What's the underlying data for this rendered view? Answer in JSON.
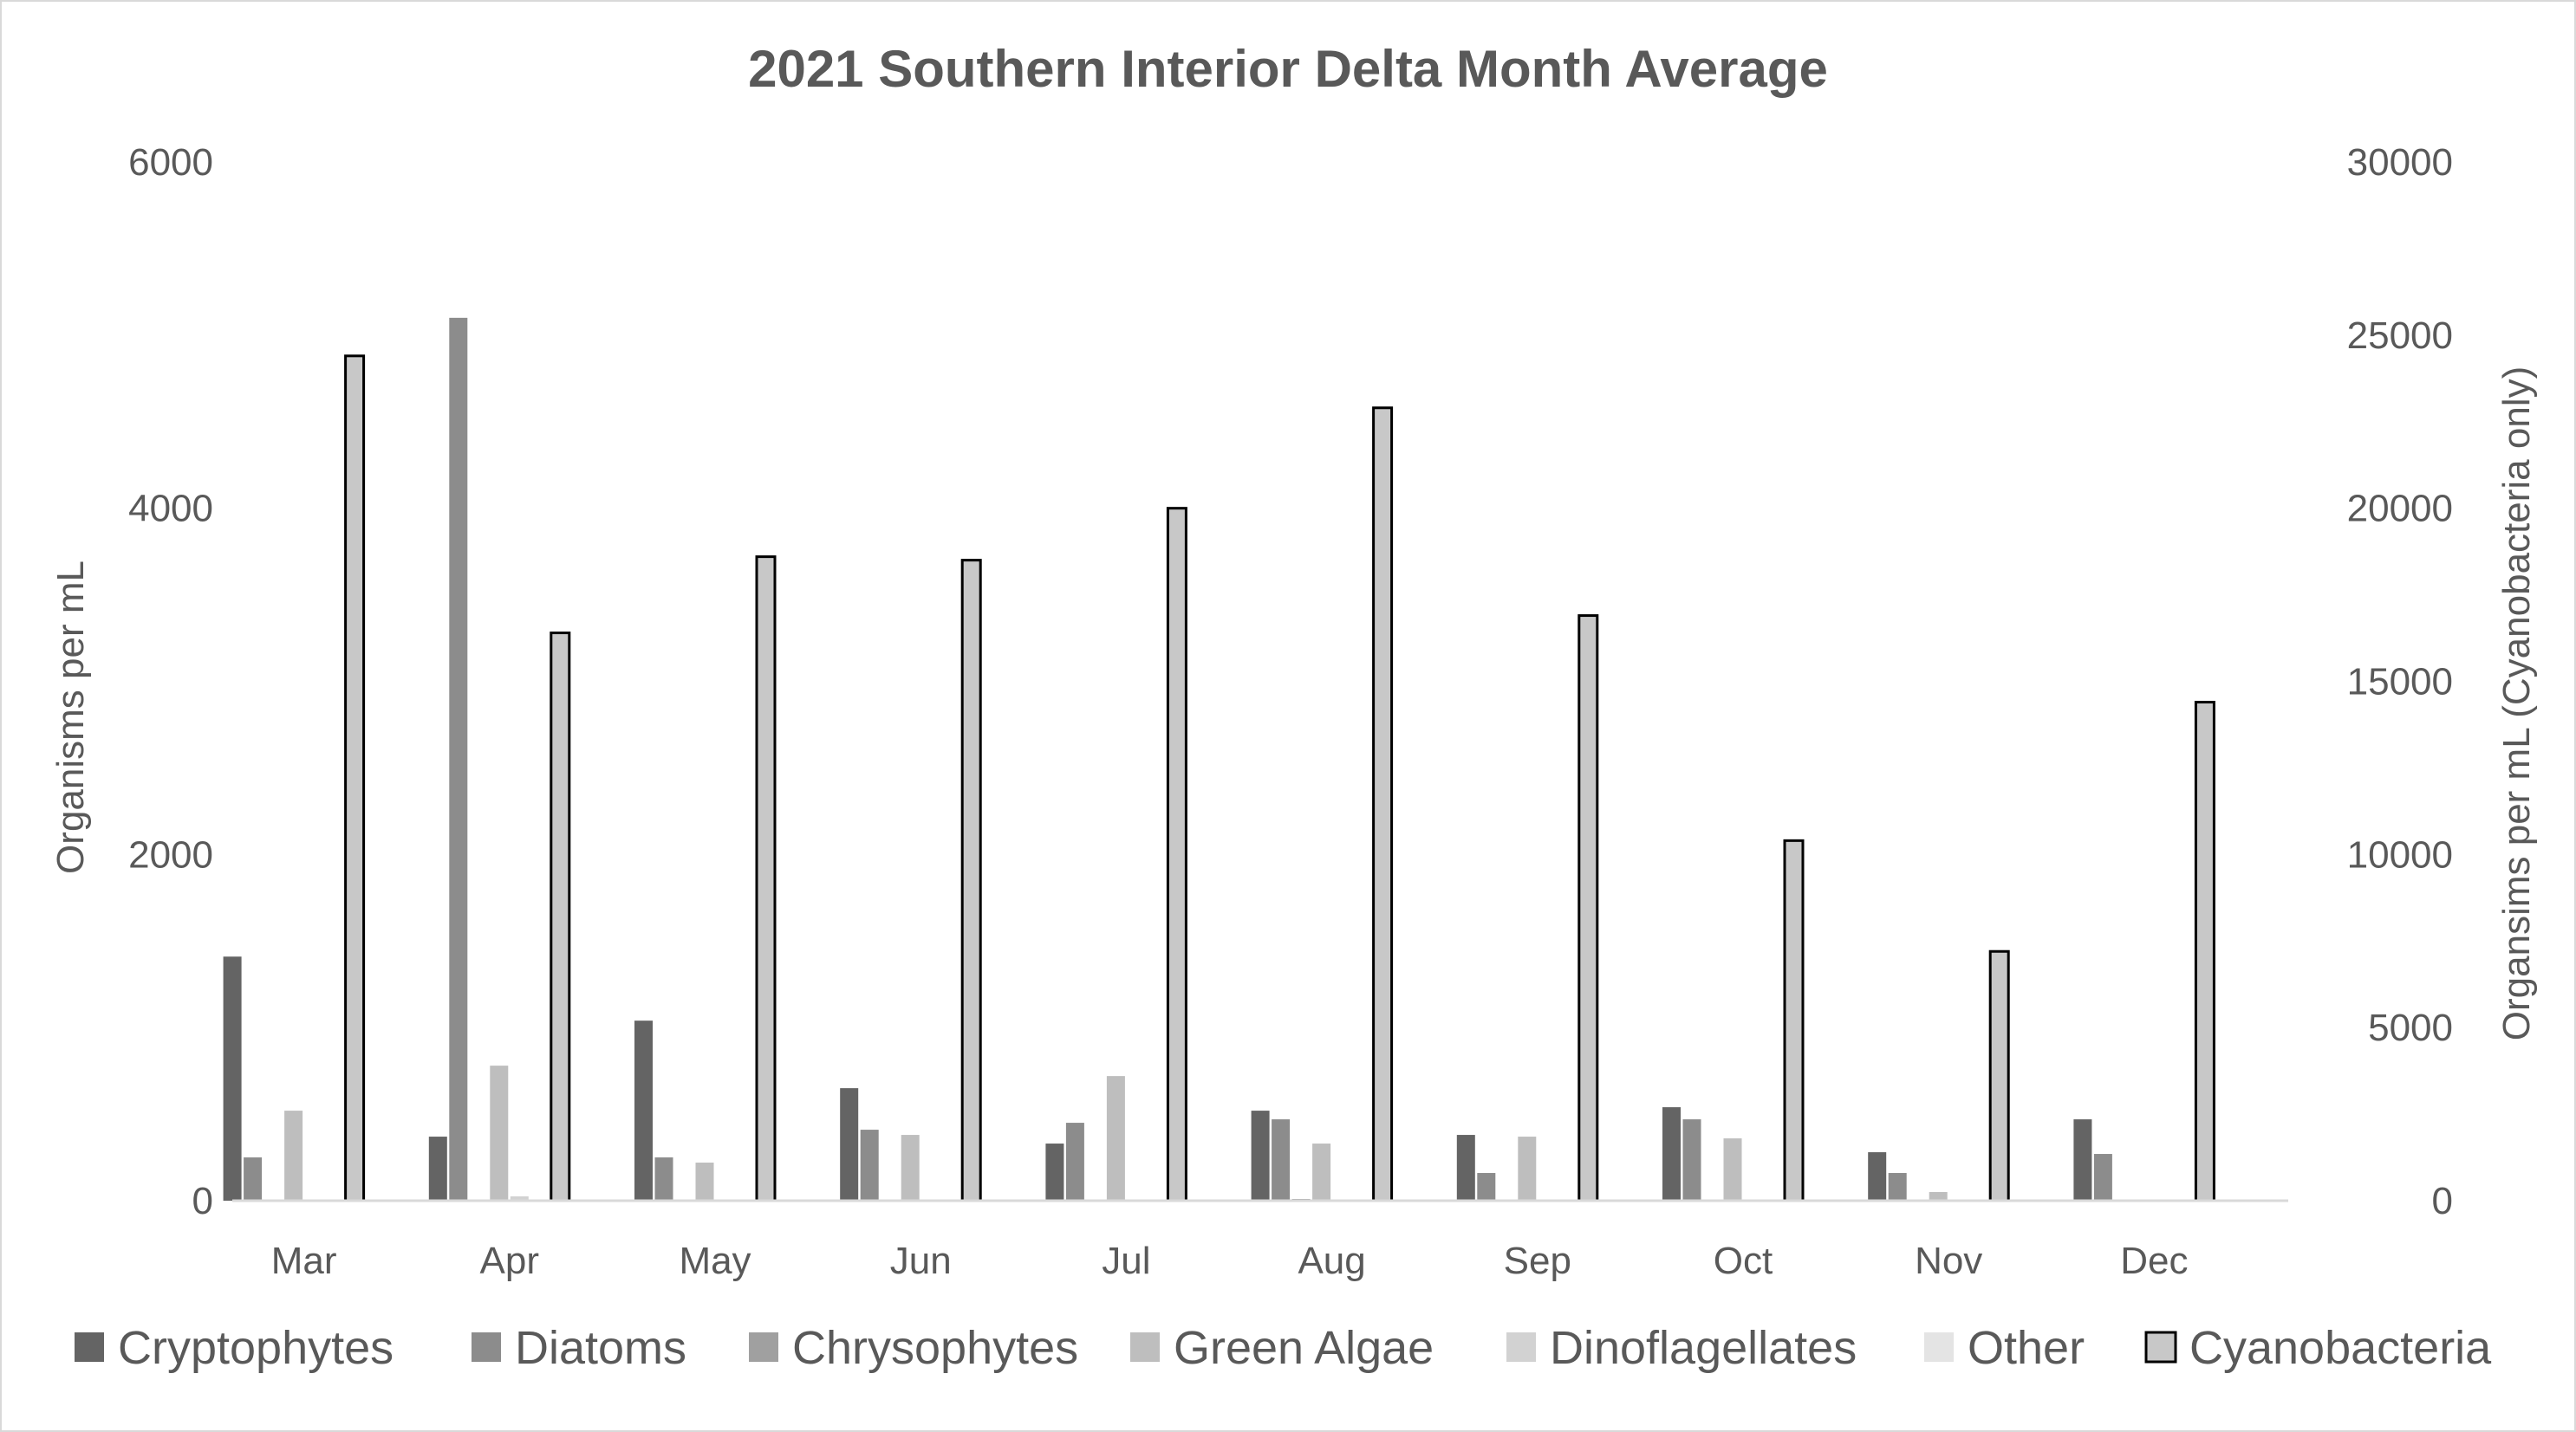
{
  "chart_data": {
    "type": "bar",
    "title": "2021 Southern Interior Delta Month Average",
    "categories": [
      "Mar",
      "Apr",
      "May",
      "Jun",
      "Jul",
      "Aug",
      "Sep",
      "Oct",
      "Nov",
      "Dec"
    ],
    "ylabel": "Organisms per mL",
    "y2label": "Organsims per mL (Cyanobacteria only)",
    "ylim": [
      0,
      6000
    ],
    "y2lim": [
      0,
      30000
    ],
    "yticks": [
      "0",
      "2000",
      "4000",
      "6000"
    ],
    "y2ticks": [
      "0",
      "5000",
      "10000",
      "15000",
      "20000",
      "25000",
      "30000"
    ],
    "grid": false,
    "legend_position": "bottom",
    "series": [
      {
        "name": "Cryptophytes",
        "axis": "left",
        "color": "#646464",
        "values": [
          1410,
          370,
          1040,
          650,
          330,
          520,
          380,
          540,
          280,
          470
        ]
      },
      {
        "name": "Diatoms",
        "axis": "left",
        "color": "#8c8c8c",
        "values": [
          250,
          5100,
          250,
          410,
          450,
          470,
          160,
          470,
          160,
          270
        ]
      },
      {
        "name": "Chrysophytes",
        "axis": "left",
        "color": "#a0a0a0",
        "values": [
          0,
          0,
          0,
          0,
          0,
          10,
          0,
          0,
          0,
          0
        ]
      },
      {
        "name": "Green Algae",
        "axis": "left",
        "color": "#bebebe",
        "values": [
          520,
          780,
          220,
          380,
          720,
          330,
          370,
          360,
          50,
          0
        ]
      },
      {
        "name": "Dinoflagellates",
        "axis": "left",
        "color": "#d2d2d2",
        "values": [
          5,
          25,
          0,
          0,
          0,
          0,
          0,
          0,
          5,
          0
        ]
      },
      {
        "name": "Other",
        "axis": "left",
        "color": "#e4e4e4",
        "values": [
          0,
          0,
          0,
          0,
          0,
          0,
          0,
          0,
          0,
          0
        ]
      },
      {
        "name": "Cyanobacteria",
        "axis": "right",
        "color": "#c8c8c8",
        "stroke": "#000000",
        "values": [
          24400,
          16400,
          18600,
          18500,
          20000,
          22900,
          16900,
          10400,
          7200,
          14400
        ]
      }
    ]
  }
}
